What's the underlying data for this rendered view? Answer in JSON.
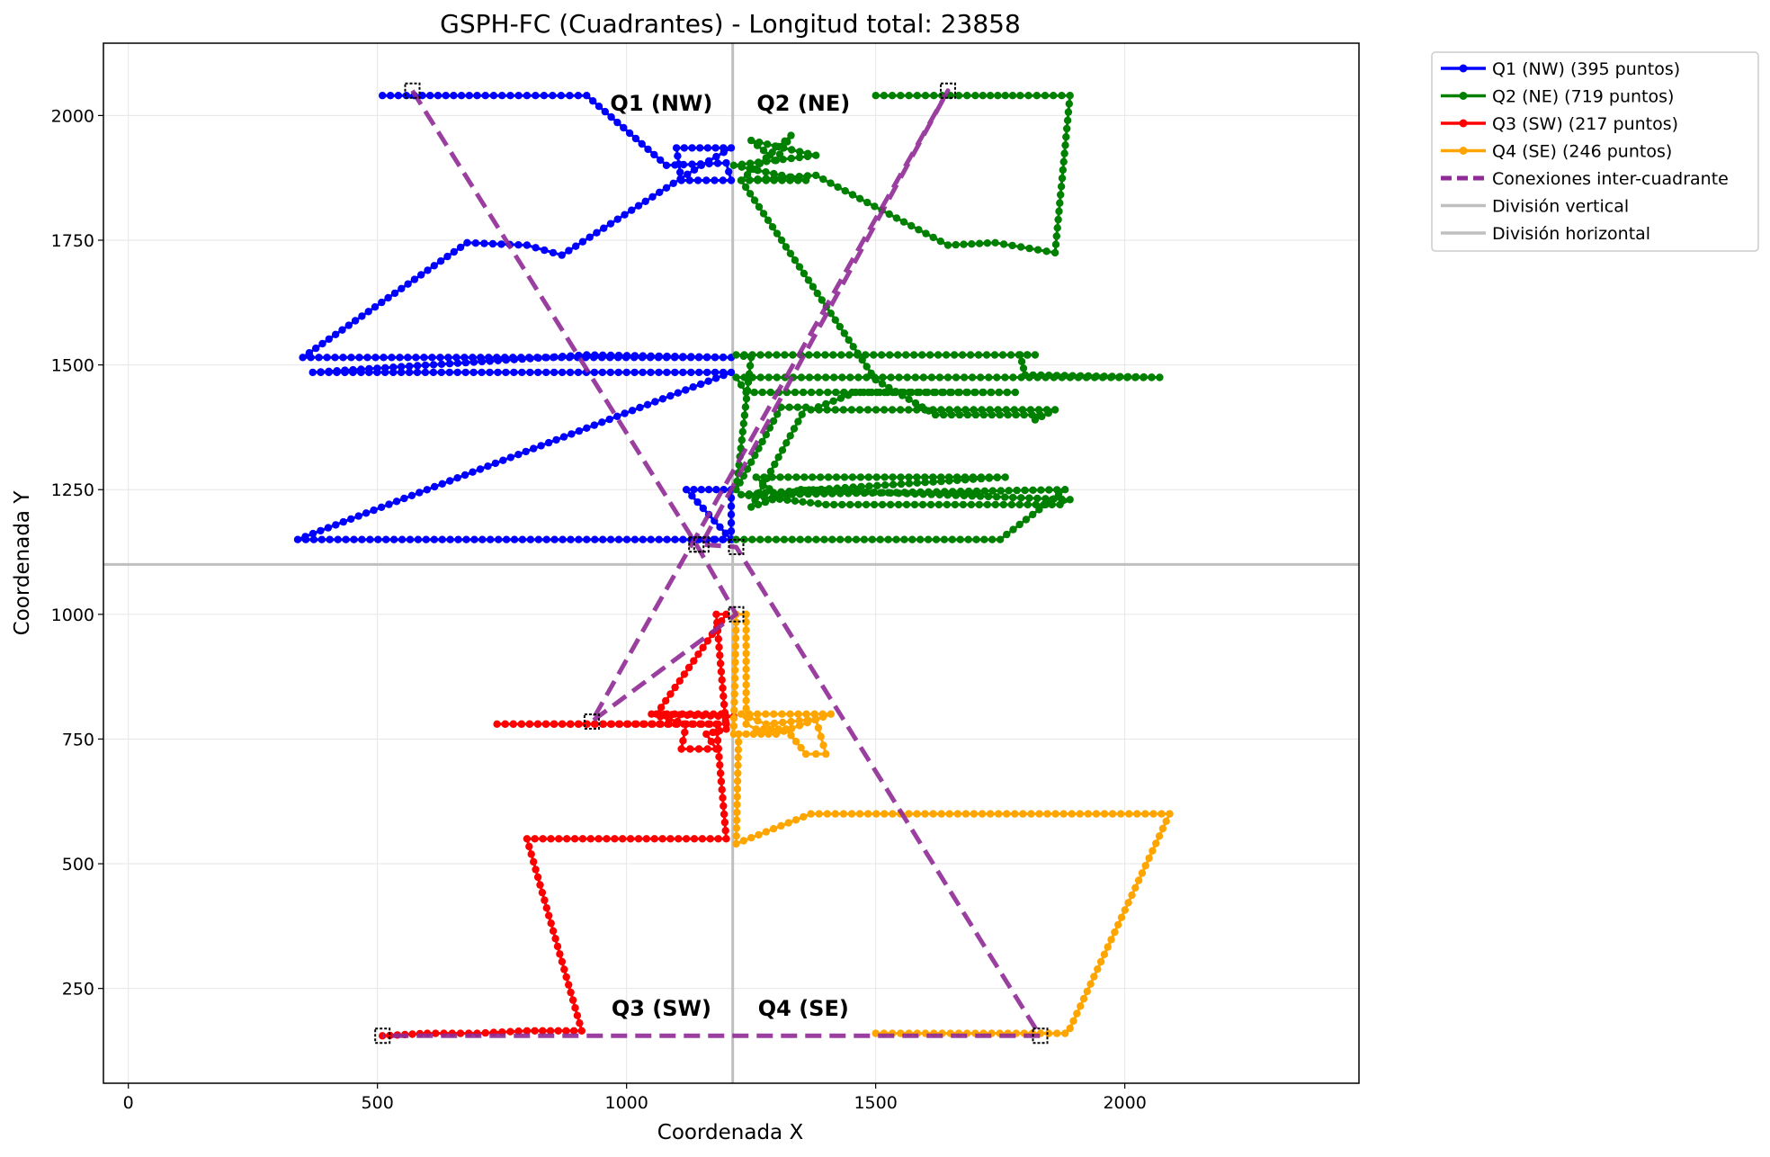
{
  "chart_data": {
    "type": "line",
    "title": "GSPH-FC (Cuadrantes) - Longitud total: 23858",
    "xlabel": "Coordenada X",
    "ylabel": "Coordenada Y",
    "xlim": [
      -50,
      2470
    ],
    "ylim": [
      60,
      2145
    ],
    "xticks": [
      0,
      500,
      1000,
      1500,
      2000
    ],
    "yticks": [
      250,
      500,
      750,
      1000,
      1250,
      1500,
      1750,
      2000
    ],
    "grid": true,
    "legend_position": "outside-top-right",
    "dividers": {
      "vertical_x": 1213,
      "horizontal_y": 1100,
      "color": "#bfbfbf"
    },
    "annotations": [
      {
        "text": "Q1 (NW)",
        "x": 1070,
        "y": 2010
      },
      {
        "text": "Q2 (NE)",
        "x": 1355,
        "y": 2010
      },
      {
        "text": "Q3 (SW)",
        "x": 1070,
        "y": 195
      },
      {
        "text": "Q4 (SE)",
        "x": 1355,
        "y": 195
      }
    ],
    "series": [
      {
        "name": "Q1 (NW) (395 puntos)",
        "color": "#0000ff",
        "markers": true,
        "points": [
          [
            510,
            2040
          ],
          [
            590,
            2040
          ],
          [
            700,
            2040
          ],
          [
            800,
            2040
          ],
          [
            920,
            2040
          ],
          [
            1080,
            1900
          ],
          [
            1200,
            1905
          ],
          [
            1210,
            1870
          ],
          [
            1110,
            1870
          ],
          [
            1100,
            1935
          ],
          [
            1210,
            1935
          ],
          [
            1150,
            1900
          ],
          [
            870,
            1720
          ],
          [
            800,
            1740
          ],
          [
            680,
            1745
          ],
          [
            350,
            1515
          ],
          [
            1210,
            1515
          ],
          [
            920,
            1520
          ],
          [
            370,
            1485
          ],
          [
            1210,
            1485
          ],
          [
            340,
            1150
          ],
          [
            1210,
            1150
          ],
          [
            1120,
            1250
          ],
          [
            1210,
            1250
          ],
          [
            1210,
            1150
          ],
          [
            1140,
            1150
          ]
        ]
      },
      {
        "name": "Q2 (NE) (719 puntos)",
        "color": "#008000",
        "markers": true,
        "points": [
          [
            1500,
            2040
          ],
          [
            1700,
            2040
          ],
          [
            1790,
            2040
          ],
          [
            1890,
            2040
          ],
          [
            1860,
            1725
          ],
          [
            1740,
            1745
          ],
          [
            1645,
            1740
          ],
          [
            1380,
            1880
          ],
          [
            1230,
            1870
          ],
          [
            1330,
            1960
          ],
          [
            1300,
            1910
          ],
          [
            1250,
            1950
          ],
          [
            1380,
            1920
          ],
          [
            1215,
            1900
          ],
          [
            1360,
            1870
          ],
          [
            1280,
            1870
          ],
          [
            1230,
            1870
          ],
          [
            1500,
            1470
          ],
          [
            1620,
            1400
          ],
          [
            1830,
            1400
          ],
          [
            1820,
            1390
          ],
          [
            1860,
            1410
          ],
          [
            1370,
            1410
          ],
          [
            1460,
            1445
          ],
          [
            1780,
            1445
          ],
          [
            1240,
            1445
          ],
          [
            1220,
            1475
          ],
          [
            2070,
            1475
          ],
          [
            1800,
            1480
          ],
          [
            1790,
            1520
          ],
          [
            1820,
            1520
          ],
          [
            1220,
            1520
          ],
          [
            1250,
            1515
          ],
          [
            1220,
            1250
          ],
          [
            1310,
            1415
          ],
          [
            1360,
            1415
          ],
          [
            1250,
            1215
          ],
          [
            1350,
            1250
          ],
          [
            1890,
            1230
          ],
          [
            1870,
            1220
          ],
          [
            1400,
            1220
          ],
          [
            1230,
            1240
          ],
          [
            1760,
            1275
          ],
          [
            1260,
            1275
          ],
          [
            1300,
            1240
          ],
          [
            1880,
            1250
          ],
          [
            1750,
            1150
          ],
          [
            1220,
            1150
          ]
        ]
      },
      {
        "name": "Q3 (SW) (217 puntos)",
        "color": "#ff0000",
        "markers": true,
        "points": [
          [
            510,
            155
          ],
          [
            600,
            160
          ],
          [
            700,
            160
          ],
          [
            800,
            165
          ],
          [
            910,
            165
          ],
          [
            800,
            550
          ],
          [
            1200,
            550
          ],
          [
            1180,
            780
          ],
          [
            740,
            780
          ],
          [
            1200,
            780
          ],
          [
            1190,
            800
          ],
          [
            1050,
            800
          ],
          [
            1120,
            780
          ],
          [
            1110,
            730
          ],
          [
            1180,
            730
          ],
          [
            1160,
            760
          ],
          [
            1200,
            770
          ],
          [
            1180,
            1000
          ],
          [
            1200,
            1000
          ],
          [
            1060,
            800
          ],
          [
            1215,
            795
          ]
        ]
      },
      {
        "name": "Q4 (SE) (246 puntos)",
        "color": "#ffa500",
        "markers": true,
        "points": [
          [
            1500,
            160
          ],
          [
            1600,
            160
          ],
          [
            1700,
            160
          ],
          [
            1880,
            160
          ],
          [
            1890,
            170
          ],
          [
            2090,
            600
          ],
          [
            1370,
            600
          ],
          [
            1220,
            540
          ],
          [
            1225,
            760
          ],
          [
            1300,
            760
          ],
          [
            1410,
            800
          ],
          [
            1230,
            800
          ],
          [
            1280,
            780
          ],
          [
            1380,
            790
          ],
          [
            1400,
            720
          ],
          [
            1360,
            720
          ],
          [
            1320,
            770
          ],
          [
            1260,
            770
          ],
          [
            1240,
            780
          ],
          [
            1240,
            1000
          ],
          [
            1220,
            1000
          ],
          [
            1215,
            760
          ]
        ]
      },
      {
        "name": "Conexiones inter-cuadrante",
        "color": "#8f2a96",
        "dashed": true,
        "markers": false,
        "points": [
          [
            570,
            2050
          ],
          [
            1140,
            1140
          ],
          [
            1220,
            1000
          ],
          [
            930,
            785
          ],
          [
            1645,
            2050
          ],
          [
            1150,
            1140
          ],
          [
            1220,
            1135
          ],
          [
            1830,
            155
          ],
          [
            510,
            155
          ]
        ]
      },
      {
        "name": "División vertical",
        "color": "#bfbfbf",
        "legend_only": true
      },
      {
        "name": "División horizontal",
        "color": "#bfbfbf",
        "legend_only": true
      }
    ]
  }
}
